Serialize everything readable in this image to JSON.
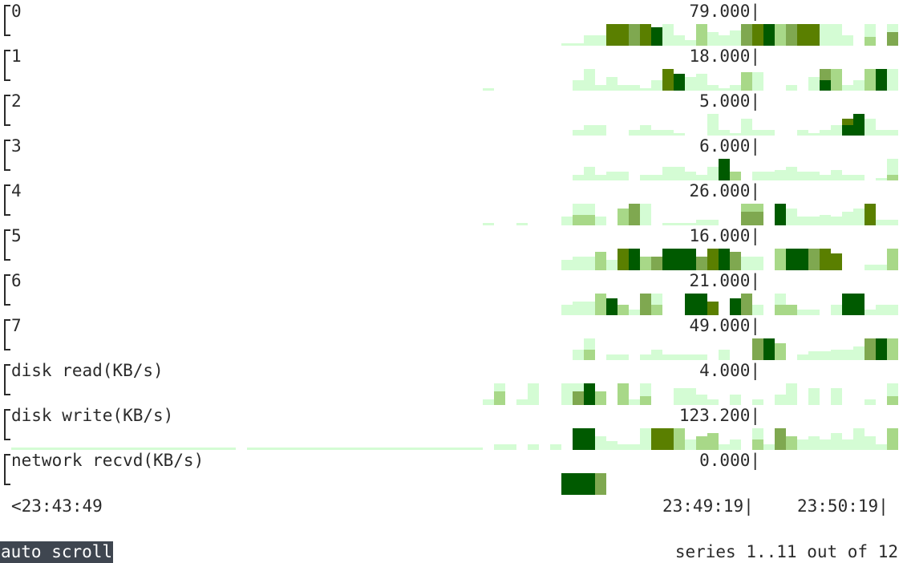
{
  "rows": [
    {
      "label": "0",
      "value": "79.000|"
    },
    {
      "label": "1",
      "value": "18.000|"
    },
    {
      "label": "2",
      "value": "5.000|"
    },
    {
      "label": "3",
      "value": "6.000|"
    },
    {
      "label": "4",
      "value": "26.000|"
    },
    {
      "label": "5",
      "value": "16.000|"
    },
    {
      "label": "6",
      "value": "21.000|"
    },
    {
      "label": "7",
      "value": "49.000|"
    },
    {
      "label": "disk read(KB/s)",
      "value": "4.000|"
    },
    {
      "label": "disk write(KB/s)",
      "value": "123.200|"
    },
    {
      "label": "network recvd(KB/s)",
      "value": "0.000|"
    }
  ],
  "axis": {
    "start": "<23:43:49",
    "mid": "23:49:19|",
    "end": "23:50:19|"
  },
  "status": {
    "mode": "auto scroll",
    "series": "series 1..11 out of 12"
  },
  "colors": {
    "very_light": "#d4fcd4",
    "light": "#a8d888",
    "mid": "#7fa850",
    "olive": "#5a7f00",
    "dark": "#005a00"
  }
}
